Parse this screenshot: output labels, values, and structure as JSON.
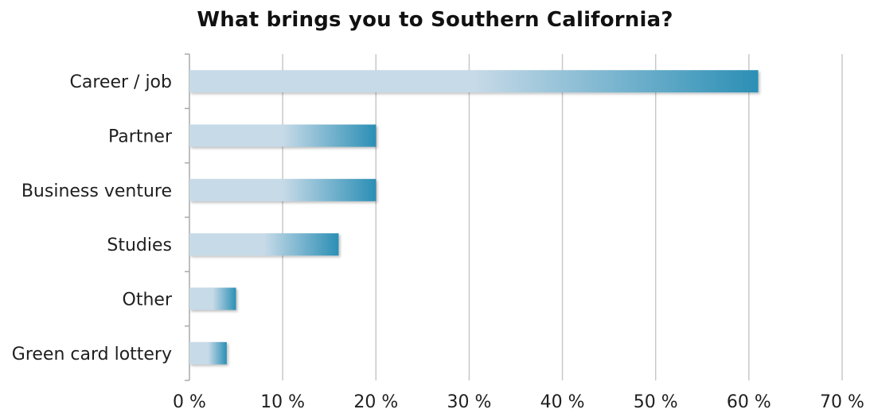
{
  "chart_data": {
    "type": "bar",
    "orientation": "horizontal",
    "title": "What brings you to Southern California?",
    "categories": [
      "Career / job",
      "Partner",
      "Business venture",
      "Studies",
      "Other",
      "Green card lottery"
    ],
    "values": [
      61,
      20,
      20,
      16,
      5,
      4
    ],
    "xlim": [
      0,
      70
    ],
    "xticks": [
      0,
      10,
      20,
      30,
      40,
      50,
      60,
      70
    ],
    "xtick_labels": [
      "0 %",
      "10 %",
      "20 %",
      "30 %",
      "40 %",
      "50 %",
      "60 %",
      "70 %"
    ],
    "xlabel": "",
    "ylabel": "",
    "grid": "vertical",
    "legend": "none",
    "colors": {
      "bar_light": "#c7dae8",
      "bar_dark": "#2b8fb5",
      "grid": "#c8c8c8",
      "axis": "#aaaaaa"
    }
  }
}
